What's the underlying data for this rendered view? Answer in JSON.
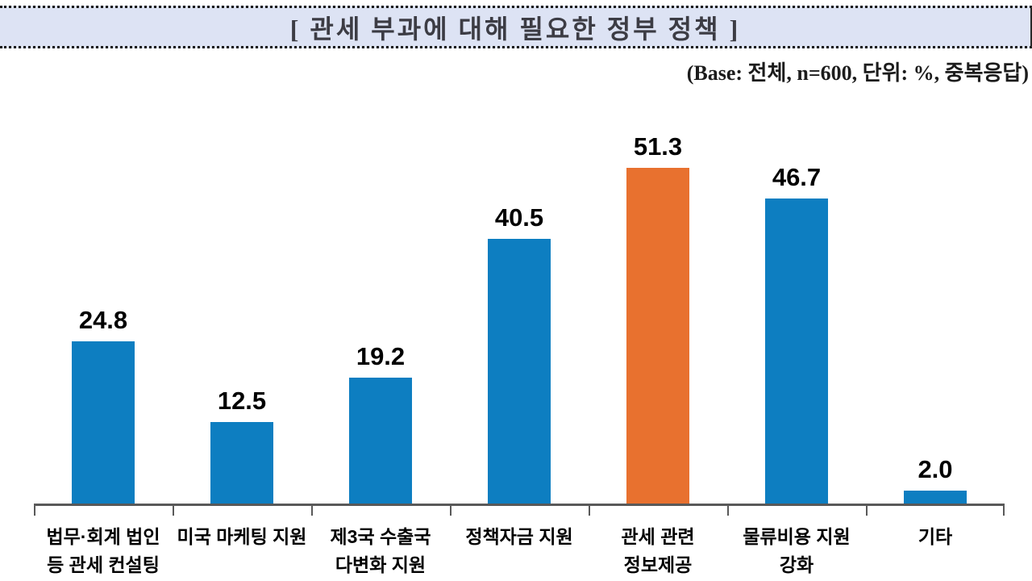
{
  "header": {
    "title": "[ 관세 부과에 대해 필요한 정부 정책 ]",
    "base_note": "(Base: 전체, n=600, 단위: %, 중복응답)"
  },
  "chart_data": {
    "type": "bar",
    "title": "관세 부과에 대해 필요한 정부 정책",
    "categories": [
      "법무·회계 법인\n등 관세 컨설팅",
      "미국 마케팅 지원",
      "제3국 수출국\n다변화 지원",
      "정책자금 지원",
      "관세 관련\n정보제공",
      "물류비용 지원\n강화",
      "기타"
    ],
    "values": [
      24.8,
      12.5,
      19.2,
      40.5,
      51.3,
      46.7,
      2.0
    ],
    "unit": "%",
    "base_n": 600,
    "multiple_response": true,
    "highlight_index": 4,
    "value_labels": true,
    "grid": false,
    "legend": false,
    "ylim": [
      0,
      55
    ],
    "colors": {
      "bar": "#0d7ec1",
      "highlight": "#e8712f",
      "axis": "#595959",
      "title_band_bg": "#dde3f4"
    }
  }
}
